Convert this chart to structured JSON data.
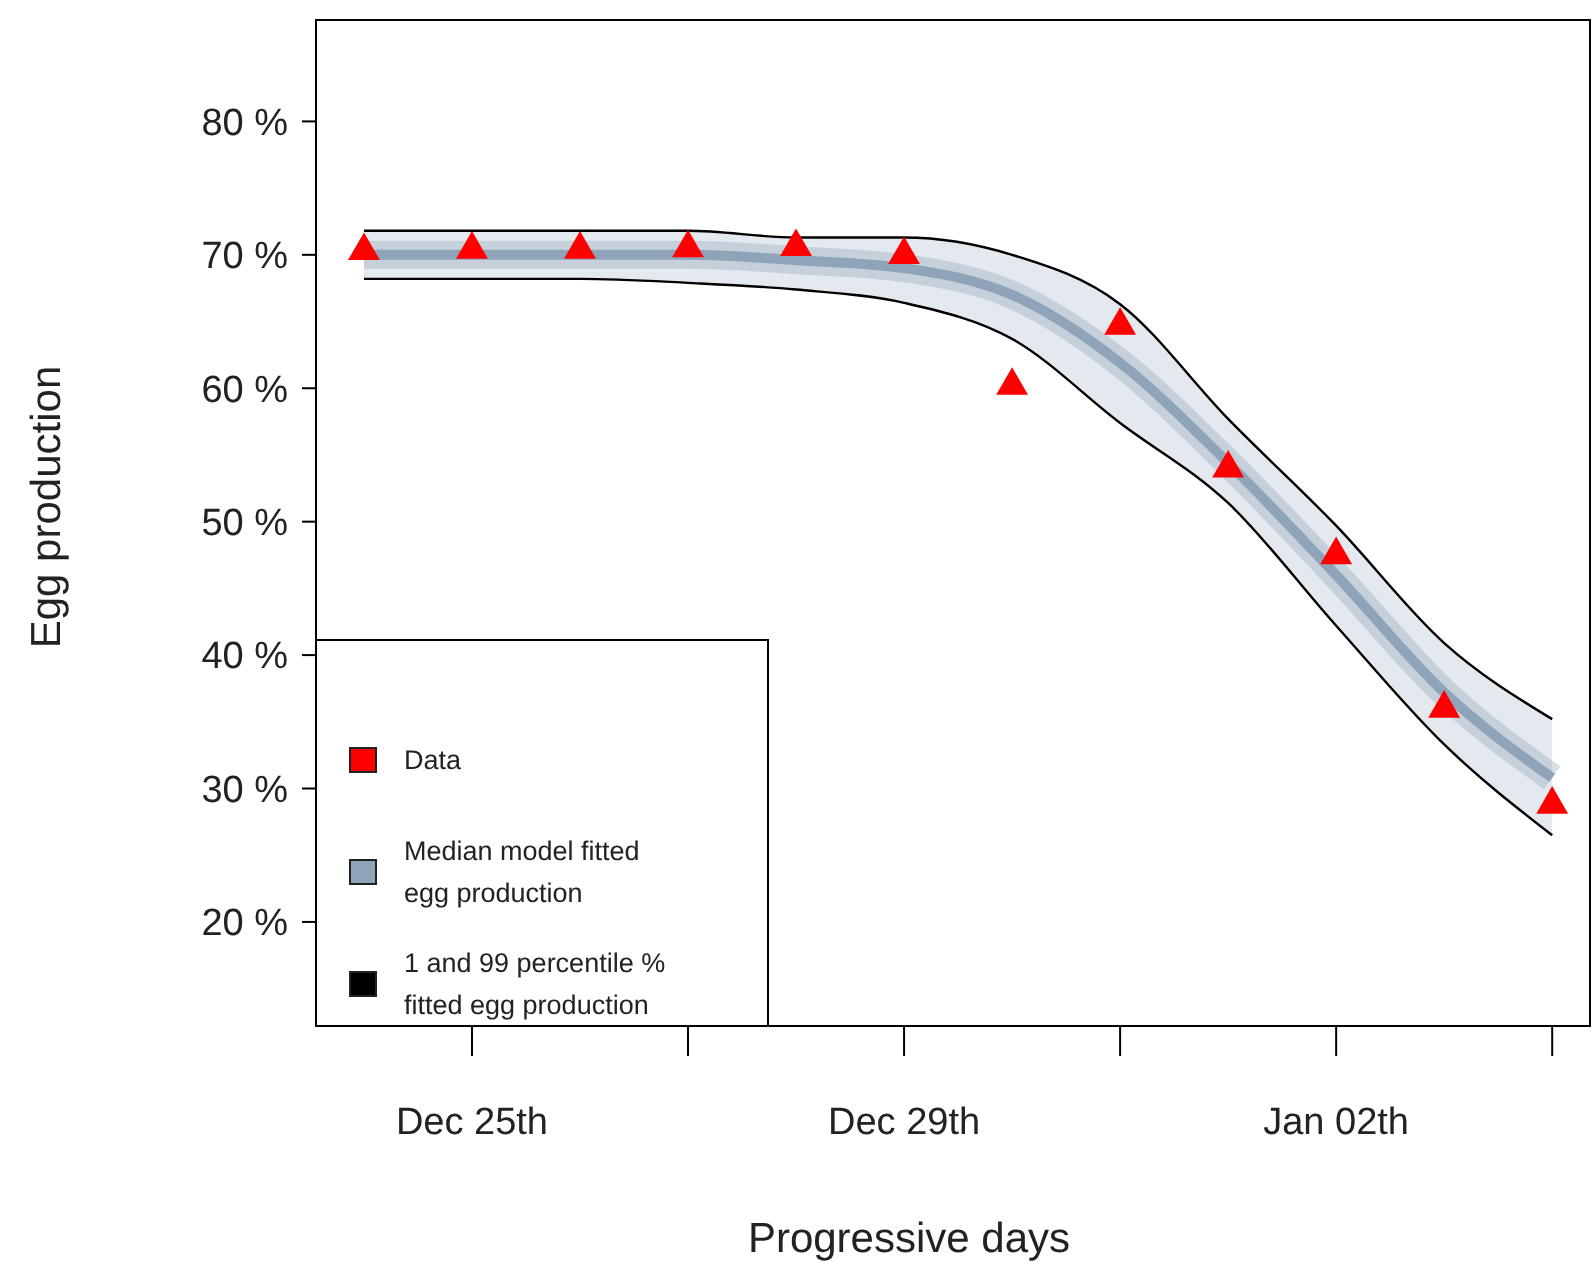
{
  "chart_data": {
    "type": "line",
    "xlabel": "Progressive days",
    "ylabel": "Egg production",
    "categories": [
      null,
      "Dec 25th",
      null,
      null,
      null,
      "Dec 29th",
      null,
      null,
      null,
      "Jan 02th",
      null,
      null
    ],
    "ylim": [
      12.2,
      87.6
    ],
    "yticks": [
      {
        "value": 20,
        "label": "20 %"
      },
      {
        "value": 30,
        "label": "30 %"
      },
      {
        "value": 40,
        "label": "40 %"
      },
      {
        "value": 50,
        "label": "50 %"
      },
      {
        "value": 60,
        "label": "60 %"
      },
      {
        "value": 70,
        "label": "70 %"
      },
      {
        "value": 80,
        "label": "80 %"
      }
    ],
    "series": [
      {
        "name": "Data",
        "type": "scatter",
        "color": "#ff0000",
        "marker": "triangle",
        "values": [
          70.3,
          70.4,
          70.4,
          70.5,
          70.6,
          70.0,
          60.2,
          64.7,
          54.0,
          47.5,
          36.0,
          28.8
        ]
      },
      {
        "name": "Median model fitted egg production",
        "color": "#8fa4b8",
        "values": [
          70.0,
          70.0,
          70.0,
          70.0,
          69.6,
          69.0,
          67.0,
          61.9,
          54.4,
          46.0,
          37.2,
          30.8
        ],
        "lower": [
          68.2,
          68.2,
          68.2,
          67.9,
          67.4,
          66.4,
          63.7,
          57.4,
          51.4,
          42.2,
          33.3,
          26.5
        ],
        "upper": [
          71.8,
          71.8,
          71.8,
          71.8,
          71.3,
          71.3,
          70.0,
          66.3,
          57.7,
          49.7,
          40.9,
          35.2
        ]
      },
      {
        "name": "1 and 99 percentile % fitted egg production",
        "color": "#000000",
        "values": [
          68.2,
          68.2,
          68.2,
          67.9,
          67.4,
          66.4,
          63.7,
          57.4,
          51.4,
          42.2,
          33.3,
          26.5
        ]
      },
      {
        "color": "#000000",
        "values": [
          71.8,
          71.8,
          71.8,
          71.8,
          71.3,
          71.3,
          70.0,
          66.3,
          57.7,
          49.7,
          40.9,
          35.2
        ]
      }
    ],
    "legend": "bottom left",
    "marker": "none",
    "line_style": "solid"
  }
}
